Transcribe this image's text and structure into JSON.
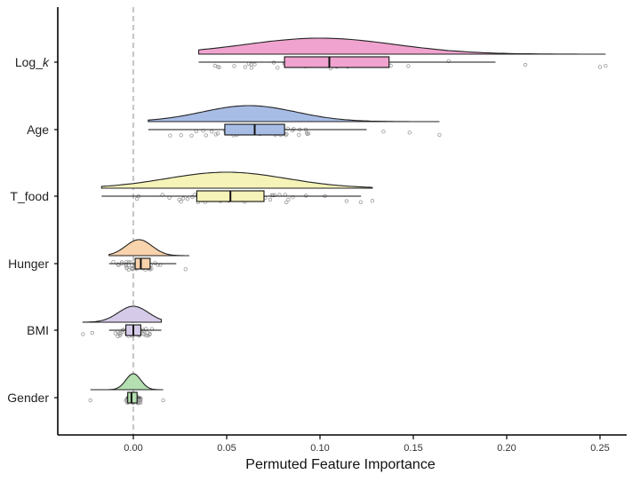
{
  "chart_data": {
    "type": "raincloud",
    "xlabel": "Permuted Feature Importance",
    "ylabel": "",
    "xlim": [
      -0.04,
      0.26
    ],
    "xticks": [
      0.0,
      0.05,
      0.1,
      0.15,
      0.2,
      0.25
    ],
    "xtick_labels": [
      "0.00",
      "0.05",
      "0.10",
      "0.15",
      "0.20",
      "0.25"
    ],
    "reference_line": 0,
    "grid": false,
    "categories": [
      {
        "label": "Log_",
        "label_italic": "k",
        "color": "#f0a3cf",
        "min": 0.035,
        "q1": 0.081,
        "median": 0.105,
        "q3": 0.137,
        "max": 0.194,
        "density_range": [
          0.035,
          0.253
        ],
        "density_peak": 0.1,
        "density_sd": 0.04,
        "outliers": [
          0.21,
          0.25,
          0.253
        ]
      },
      {
        "label": "Age",
        "label_italic": "",
        "color": "#a8bde6",
        "min": 0.008,
        "q1": 0.049,
        "median": 0.065,
        "q3": 0.081,
        "max": 0.125,
        "density_range": [
          0.008,
          0.164
        ],
        "density_peak": 0.062,
        "density_sd": 0.025,
        "outliers": [
          0.134,
          0.148,
          0.164
        ]
      },
      {
        "label": "T_food",
        "label_italic": "",
        "color": "#f6f3b8",
        "min": -0.017,
        "q1": 0.034,
        "median": 0.052,
        "q3": 0.07,
        "max": 0.122,
        "density_range": [
          -0.017,
          0.128
        ],
        "density_peak": 0.05,
        "density_sd": 0.032,
        "outliers": [
          0.128
        ]
      },
      {
        "label": "Hunger",
        "label_italic": "",
        "color": "#f9d3ac",
        "min": -0.013,
        "q1": 0.001,
        "median": 0.004,
        "q3": 0.009,
        "max": 0.023,
        "density_range": [
          -0.013,
          0.03
        ],
        "density_peak": 0.003,
        "density_sd": 0.007,
        "outliers": [
          0.028
        ]
      },
      {
        "label": "BMI",
        "label_italic": "",
        "color": "#d5cbe8",
        "min": -0.013,
        "q1": -0.004,
        "median": 0.0,
        "q3": 0.004,
        "max": 0.015,
        "density_range": [
          -0.027,
          0.015
        ],
        "density_peak": 0.0,
        "density_sd": 0.008,
        "outliers": [
          -0.027,
          -0.022
        ]
      },
      {
        "label": "Gender",
        "label_italic": "",
        "color": "#b4dfb0",
        "min": -0.004,
        "q1": -0.003,
        "median": -0.001,
        "q3": 0.002,
        "max": 0.004,
        "density_range": [
          -0.023,
          0.016
        ],
        "density_peak": 0.0,
        "density_sd": 0.004,
        "outliers": [
          -0.023,
          0.016
        ]
      }
    ]
  },
  "colors": {
    "axis": "#000000",
    "box_stroke": "#111111",
    "points": "#9a9a9a",
    "reference_line": "#a0a0a0"
  }
}
